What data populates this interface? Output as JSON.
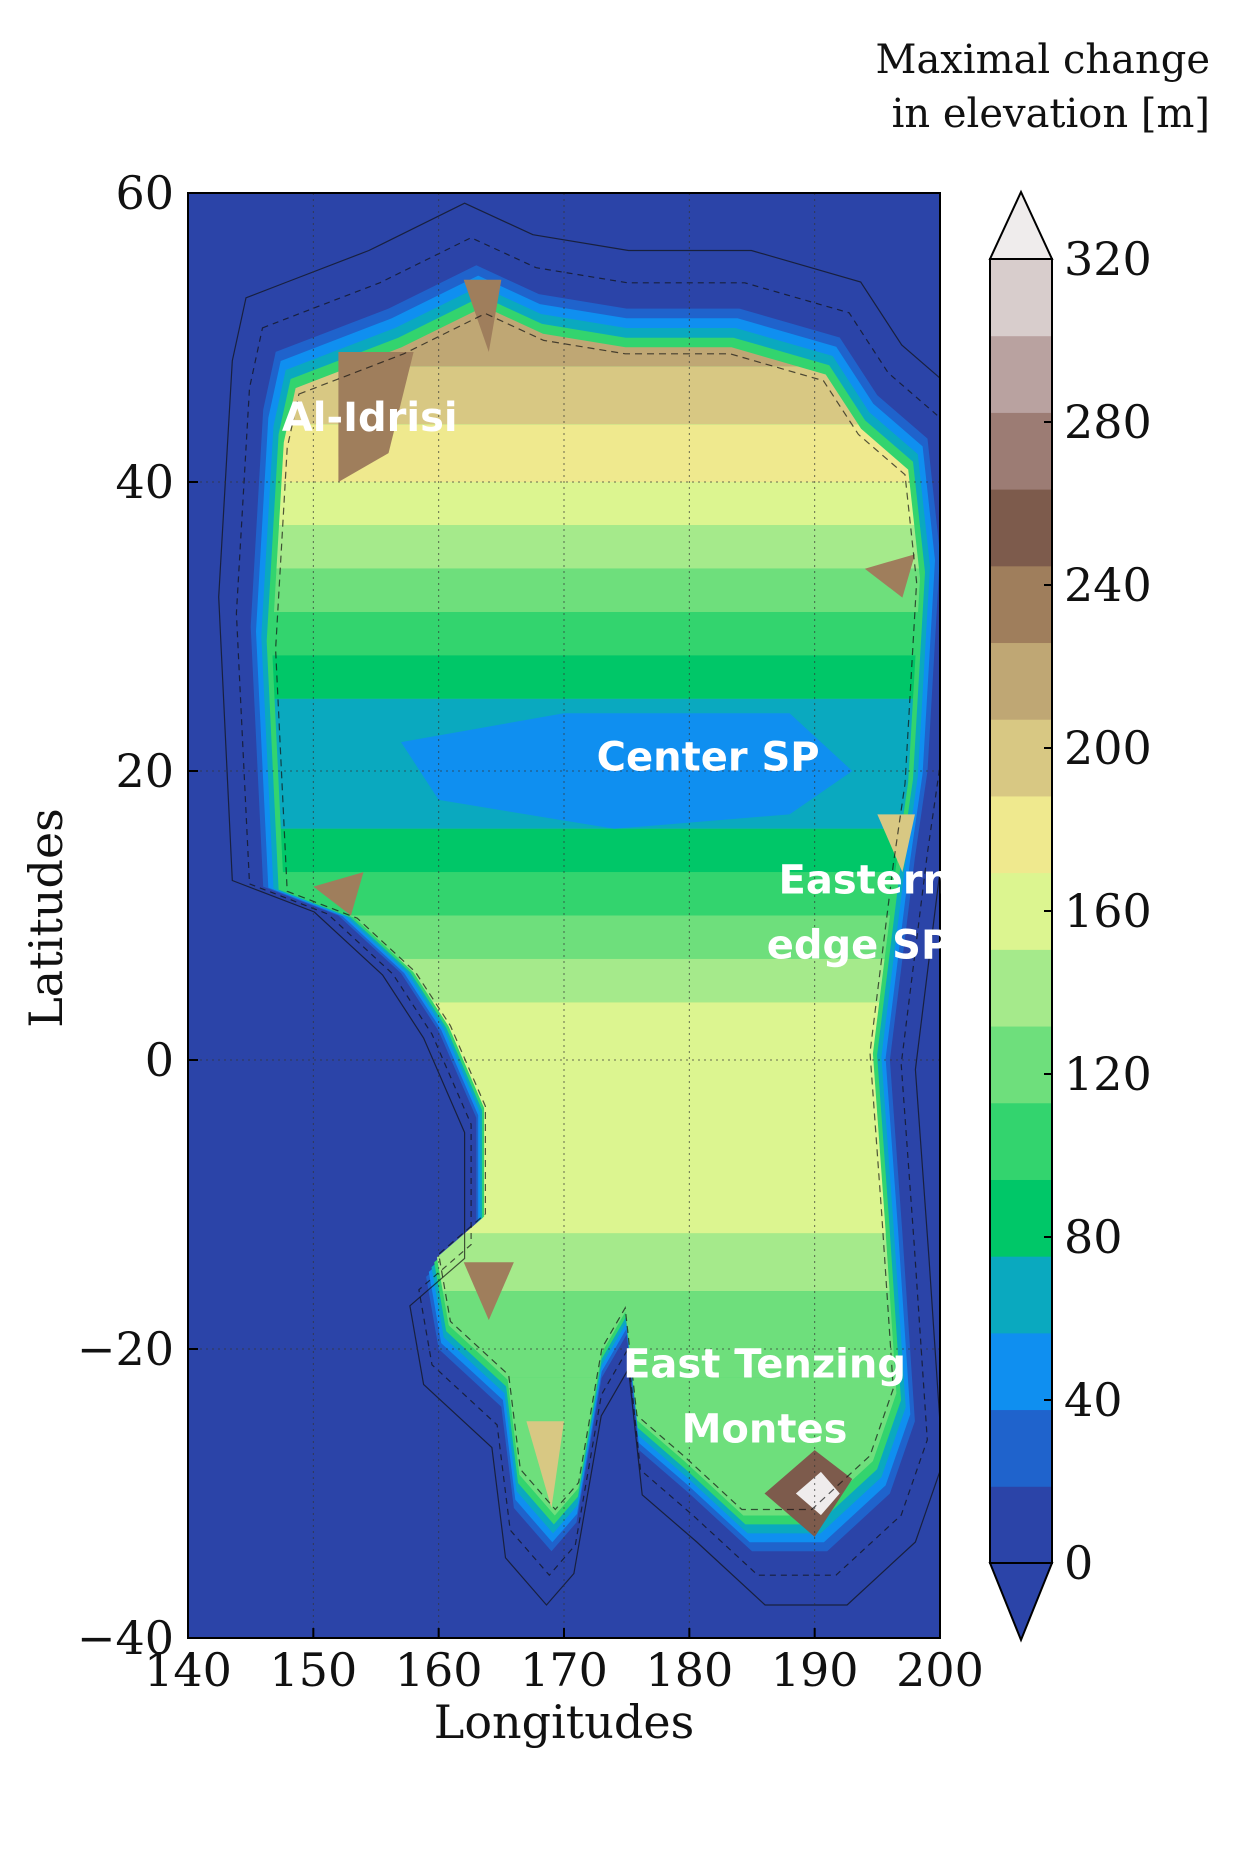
{
  "chart_data": {
    "type": "heatmap",
    "subtype": "filled-contour",
    "title": "",
    "xlabel": "Longitudes",
    "ylabel": "Latitudes",
    "xlim": [
      140,
      200
    ],
    "ylim": [
      -40,
      60
    ],
    "xticks": [
      "140",
      "150",
      "160",
      "170",
      "180",
      "190",
      "200"
    ],
    "yticks": [
      "60",
      "40",
      "20",
      "0",
      "−20",
      "−40"
    ],
    "grid": true,
    "colorbar": {
      "title_lines": [
        "Maximal change",
        "in elevation [m]"
      ],
      "ticks": [
        "320",
        "280",
        "240",
        "200",
        "160",
        "120",
        "80",
        "40",
        "0"
      ],
      "levels": [
        0,
        20,
        40,
        60,
        80,
        100,
        120,
        140,
        160,
        180,
        200,
        220,
        240,
        260,
        280,
        300,
        320
      ],
      "colors": [
        "#2b44a8",
        "#1f63cc",
        "#0f8ff0",
        "#0aa9bf",
        "#00c768",
        "#33d46e",
        "#6edf7c",
        "#a5ea8b",
        "#dcf590",
        "#efe98e",
        "#d8c883",
        "#bfa774",
        "#9f7e5c",
        "#7d5b4c",
        "#9c7c74",
        "#b9a2a0",
        "#d8cdcc"
      ],
      "extend_over_color": "#efecec",
      "extend_under_color": "#2b44a8"
    },
    "annotations": [
      {
        "text": "Al-Idrisi",
        "lon": 154.5,
        "lat": 44.5
      },
      {
        "text": "Center SP",
        "lon": 181.5,
        "lat": 21.0
      },
      {
        "text": "Eastern",
        "lon": 194.0,
        "lat": 12.5
      },
      {
        "text": "edge SP",
        "lon": 193.5,
        "lat": 8.0
      },
      {
        "text": "East Tenzing",
        "lon": 186.0,
        "lat": -21.0
      },
      {
        "text": "Montes",
        "lon": 186.0,
        "lat": -25.5
      }
    ],
    "regions": {
      "plateau_boundary": [
        [
          147,
          49
        ],
        [
          150,
          50
        ],
        [
          156,
          52
        ],
        [
          163,
          55
        ],
        [
          168,
          53
        ],
        [
          175,
          52
        ],
        [
          184,
          52
        ],
        [
          192,
          50
        ],
        [
          195,
          46
        ],
        [
          199,
          43
        ],
        [
          200,
          35
        ],
        [
          199,
          20
        ],
        [
          198,
          14
        ],
        [
          196,
          0
        ],
        [
          197,
          -12
        ],
        [
          198,
          -25
        ],
        [
          196,
          -30
        ],
        [
          191,
          -34
        ],
        [
          185,
          -34
        ],
        [
          180,
          -30
        ],
        [
          176,
          -27
        ],
        [
          175,
          -19
        ],
        [
          173,
          -22
        ],
        [
          171,
          -32
        ],
        [
          169,
          -34
        ],
        [
          166,
          -31
        ],
        [
          165,
          -24
        ],
        [
          160,
          -20
        ],
        [
          159,
          -15
        ],
        [
          163,
          -12
        ],
        [
          163,
          -4
        ],
        [
          160,
          2
        ],
        [
          157,
          6
        ],
        [
          152,
          10
        ],
        [
          146,
          12
        ],
        [
          145,
          30
        ],
        [
          146,
          45
        ]
      ],
      "center_sp": [
        [
          157,
          22
        ],
        [
          170,
          24
        ],
        [
          188,
          24
        ],
        [
          193,
          20
        ],
        [
          188,
          17
        ],
        [
          174,
          16
        ],
        [
          160,
          18
        ]
      ],
      "east_tenzing": [
        [
          186,
          -30
        ],
        [
          190,
          -27
        ],
        [
          193,
          -29
        ],
        [
          190,
          -33
        ]
      ]
    }
  }
}
